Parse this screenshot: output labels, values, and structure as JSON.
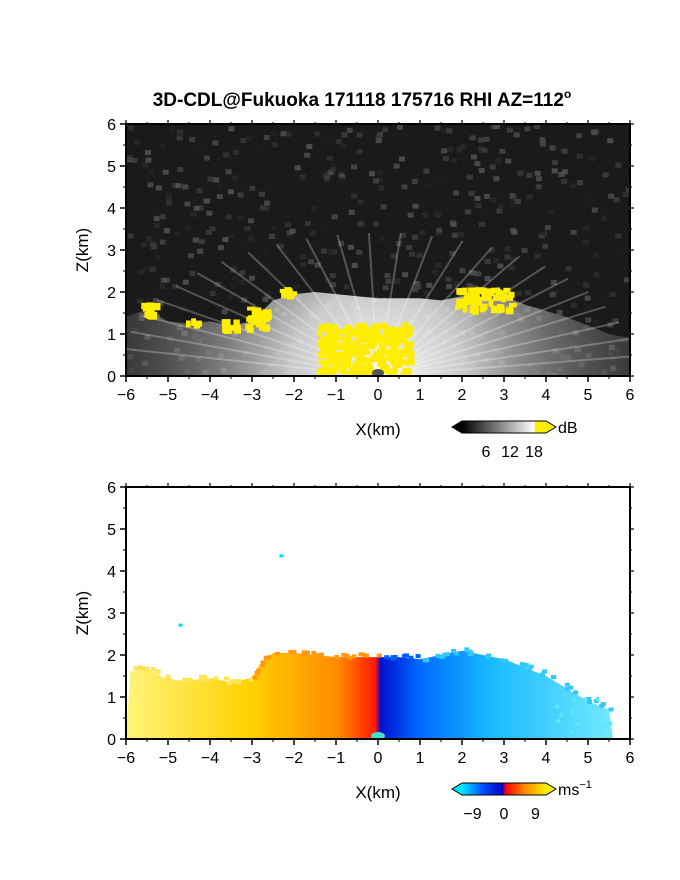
{
  "title": "3D-CDL@Fukuoka 171118 175716 RHI AZ=112",
  "title_superscript": "o",
  "chart_data": [
    {
      "type": "heatmap",
      "quantity": "backscatter intensity",
      "xlabel": "X(km)",
      "ylabel": "Z(km)",
      "xlim": [
        -6,
        6
      ],
      "ylim": [
        0,
        6
      ],
      "xticks": [
        "−6",
        "−5",
        "−4",
        "−3",
        "−2",
        "−1",
        "0",
        "1",
        "2",
        "3",
        "4",
        "5",
        "6"
      ],
      "yticks": [
        "0",
        "1",
        "2",
        "3",
        "4",
        "5",
        "6"
      ],
      "data_top_km": [
        {
          "x": -6.0,
          "z": 1.4
        },
        {
          "x": -5.5,
          "z": 1.6
        },
        {
          "x": -5.0,
          "z": 1.3
        },
        {
          "x": -4.5,
          "z": 1.25
        },
        {
          "x": -4.0,
          "z": 1.3
        },
        {
          "x": -3.5,
          "z": 1.2
        },
        {
          "x": -3.0,
          "z": 1.3
        },
        {
          "x": -2.5,
          "z": 1.8
        },
        {
          "x": -2.0,
          "z": 1.95
        },
        {
          "x": -1.5,
          "z": 2.0
        },
        {
          "x": -1.0,
          "z": 1.95
        },
        {
          "x": -0.5,
          "z": 1.9
        },
        {
          "x": 0.0,
          "z": 1.85
        },
        {
          "x": 0.5,
          "z": 1.85
        },
        {
          "x": 1.0,
          "z": 1.85
        },
        {
          "x": 1.5,
          "z": 1.8
        },
        {
          "x": 2.0,
          "z": 1.9
        },
        {
          "x": 2.5,
          "z": 1.85
        },
        {
          "x": 3.0,
          "z": 1.9
        },
        {
          "x": 3.5,
          "z": 1.7
        },
        {
          "x": 4.0,
          "z": 1.55
        },
        {
          "x": 4.5,
          "z": 1.4
        },
        {
          "x": 5.0,
          "z": 1.2
        },
        {
          "x": 5.5,
          "z": 1.0
        },
        {
          "x": 6.0,
          "z": 0.9
        }
      ],
      "saturated_regions": [
        {
          "x": [
            -5.6,
            -5.2
          ],
          "z": [
            1.4,
            1.75
          ]
        },
        {
          "x": [
            -4.6,
            -4.2
          ],
          "z": [
            1.2,
            1.35
          ]
        },
        {
          "x": [
            -3.7,
            -3.3
          ],
          "z": [
            1.1,
            1.3
          ]
        },
        {
          "x": [
            -3.1,
            -2.6
          ],
          "z": [
            1.05,
            1.6
          ]
        },
        {
          "x": [
            -2.3,
            -2.0
          ],
          "z": [
            1.9,
            2.05
          ]
        },
        {
          "x": [
            -1.4,
            0.8
          ],
          "z": [
            0.0,
            1.2
          ]
        },
        {
          "x": [
            1.9,
            3.2
          ],
          "z": [
            1.55,
            2.05
          ]
        }
      ],
      "colorbar": {
        "ticks": [
          "6",
          "12",
          "18"
        ],
        "unit": "dB",
        "range": [
          0,
          21
        ],
        "colors": [
          "#000000",
          "#ffffff",
          "#ffee00"
        ]
      }
    },
    {
      "type": "heatmap",
      "quantity": "Doppler velocity",
      "xlabel": "X(km)",
      "ylabel": "Z(km)",
      "xlim": [
        -6,
        6
      ],
      "ylim": [
        0,
        6
      ],
      "xticks": [
        "−6",
        "−5",
        "−4",
        "−3",
        "−2",
        "−1",
        "0",
        "1",
        "2",
        "3",
        "4",
        "5",
        "6"
      ],
      "yticks": [
        "0",
        "1",
        "2",
        "3",
        "4",
        "5",
        "6"
      ],
      "data_top_km": [
        {
          "x": -6.0,
          "z": 0.0
        },
        {
          "x": -5.9,
          "z": 1.6
        },
        {
          "x": -5.5,
          "z": 1.7
        },
        {
          "x": -5.0,
          "z": 1.4
        },
        {
          "x": -4.5,
          "z": 1.4
        },
        {
          "x": -4.0,
          "z": 1.45
        },
        {
          "x": -3.5,
          "z": 1.35
        },
        {
          "x": -3.0,
          "z": 1.45
        },
        {
          "x": -2.8,
          "z": 1.8
        },
        {
          "x": -2.5,
          "z": 2.05
        },
        {
          "x": -2.0,
          "z": 2.05
        },
        {
          "x": -1.5,
          "z": 2.0
        },
        {
          "x": -1.0,
          "z": 1.95
        },
        {
          "x": -0.5,
          "z": 1.95
        },
        {
          "x": 0.0,
          "z": 1.95
        },
        {
          "x": 0.5,
          "z": 1.95
        },
        {
          "x": 1.0,
          "z": 1.9
        },
        {
          "x": 1.5,
          "z": 2.0
        },
        {
          "x": 2.0,
          "z": 2.1
        },
        {
          "x": 2.5,
          "z": 2.0
        },
        {
          "x": 3.0,
          "z": 1.9
        },
        {
          "x": 3.5,
          "z": 1.7
        },
        {
          "x": 4.0,
          "z": 1.5
        },
        {
          "x": 4.5,
          "z": 1.2
        },
        {
          "x": 5.0,
          "z": 0.9
        },
        {
          "x": 5.5,
          "z": 0.7
        },
        {
          "x": 5.6,
          "z": 0.0
        }
      ],
      "approaching_side": "x < 0 (positive, red-yellow)",
      "receding_side": "x > 0 (negative, blue-cyan)",
      "isolated_echoes": [
        {
          "x": -2.3,
          "z": 4.35
        },
        {
          "x": -4.7,
          "z": 2.7
        }
      ],
      "colorbar": {
        "ticks": [
          "−9",
          "0",
          "9"
        ],
        "unit": "ms",
        "unit_superscript": "−1",
        "range": [
          -12,
          12
        ],
        "colors": [
          "#00e5ff",
          "#0050ff",
          "#0000c8",
          "#ff0000",
          "#ff8a00",
          "#fff000"
        ]
      }
    }
  ]
}
